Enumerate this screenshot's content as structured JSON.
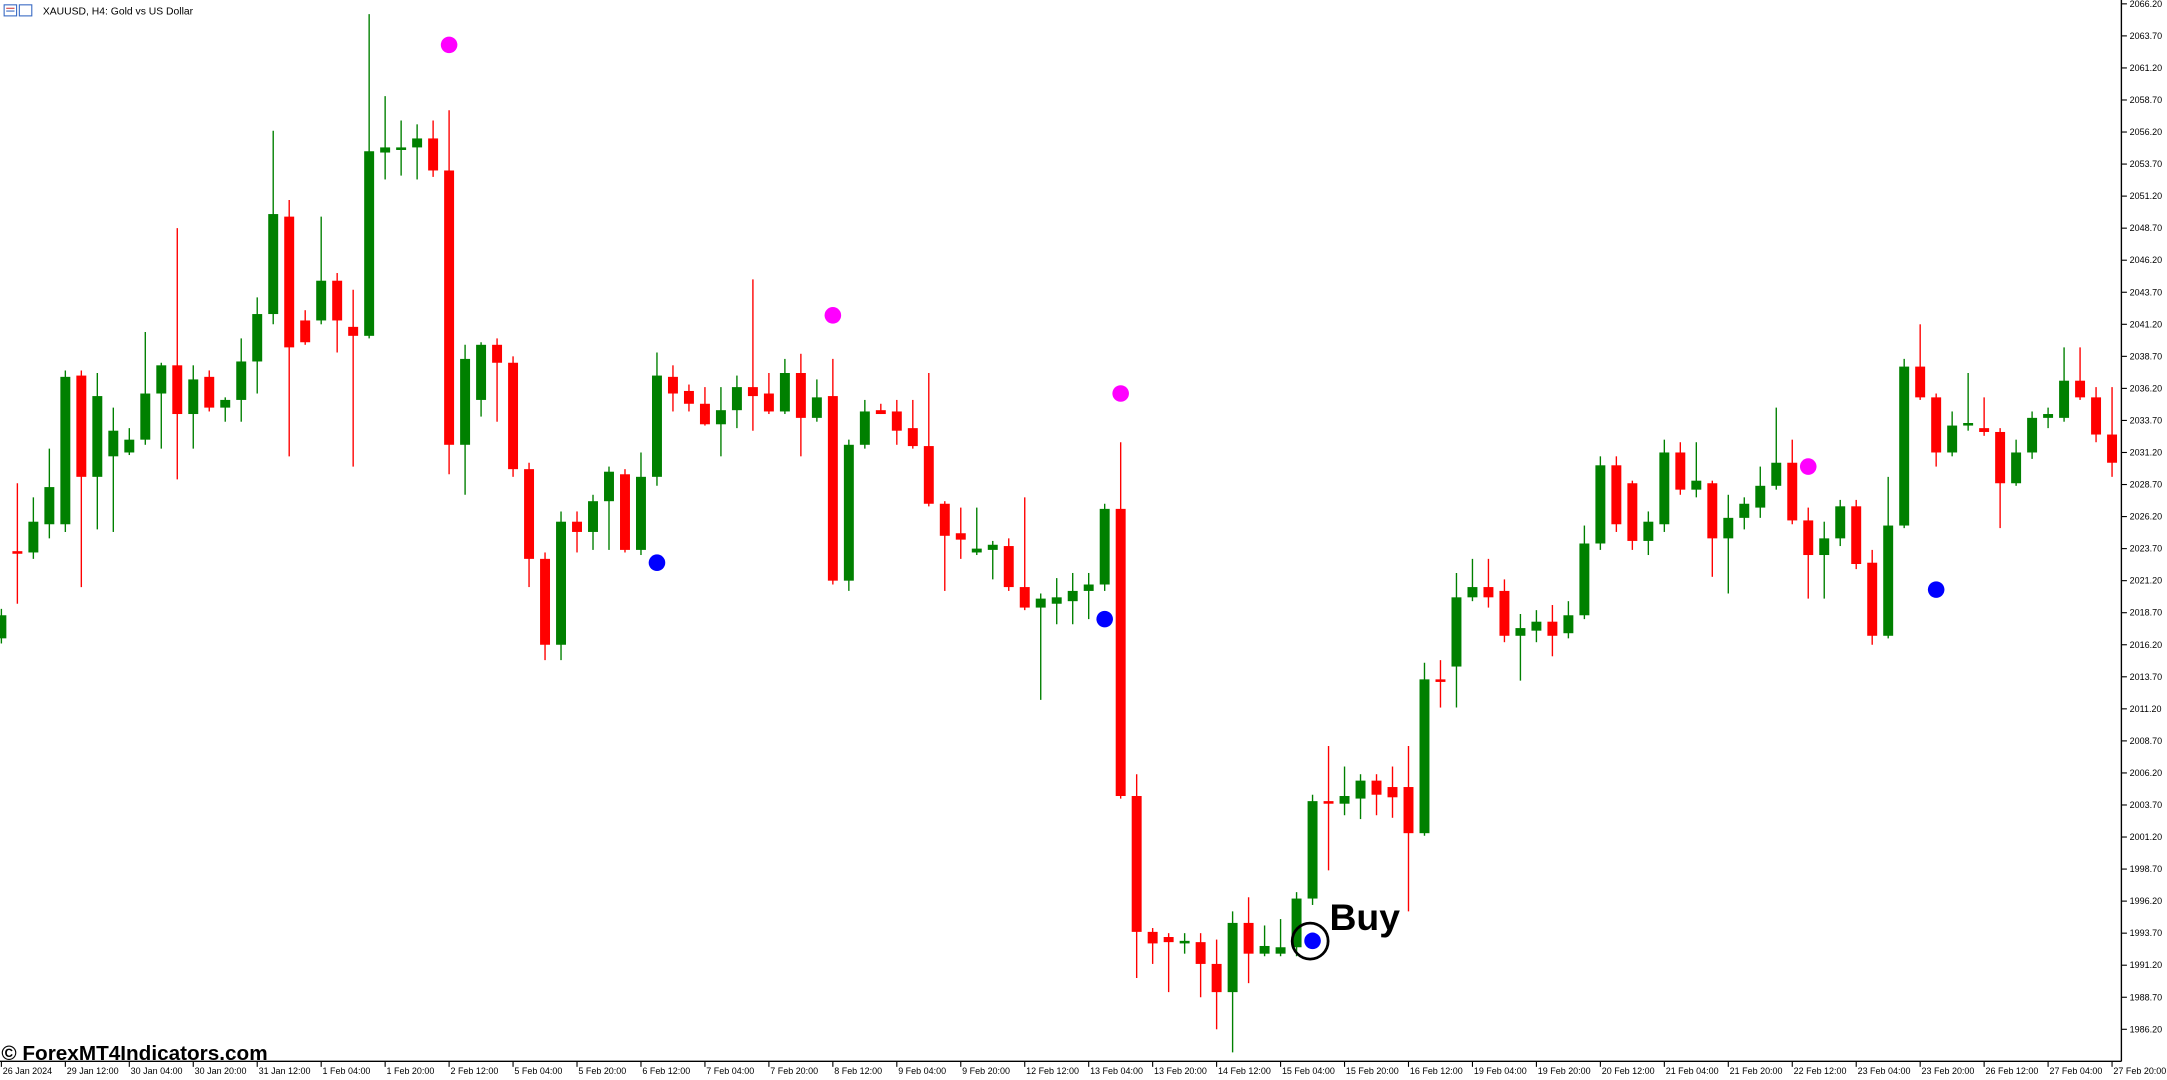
{
  "chart_data": {
    "type": "candlestick",
    "title": "XAUUSD, H4:  Gold vs US Dollar",
    "watermark": "© ForexMT4Indicators.com",
    "annotation": "Buy",
    "up_color": "#008000",
    "down_color": "#ff0000",
    "categories": [
      "26 Jan 2024",
      null,
      null,
      null,
      "29 Jan 12:00",
      null,
      null,
      null,
      "30 Jan 04:00",
      null,
      null,
      null,
      "30 Jan 20:00",
      null,
      null,
      null,
      "31 Jan 12:00",
      null,
      null,
      null,
      "1 Feb 04:00",
      null,
      null,
      null,
      "1 Feb 20:00",
      null,
      null,
      null,
      "2 Feb 12:00",
      null,
      null,
      null,
      "5 Feb 04:00",
      null,
      null,
      null,
      "5 Feb 20:00",
      null,
      null,
      null,
      "6 Feb 12:00",
      null,
      null,
      null,
      "7 Feb 04:00",
      null,
      null,
      null,
      "7 Feb 20:00",
      null,
      null,
      null,
      "8 Feb 12:00",
      null,
      null,
      null,
      "9 Feb 04:00",
      null,
      null,
      null,
      "9 Feb 20:00",
      null,
      null,
      null,
      "12 Feb 12:00",
      null,
      null,
      null,
      "13 Feb 04:00",
      null,
      null,
      null,
      "13 Feb 20:00",
      null,
      null,
      null,
      "14 Feb 12:00",
      null,
      null,
      null,
      "15 Feb 04:00",
      null,
      null,
      null,
      "15 Feb 20:00",
      null,
      null,
      null,
      "16 Feb 12:00",
      null,
      null,
      null,
      "19 Feb 04:00",
      null,
      null,
      null,
      "19 Feb 20:00",
      null,
      null,
      null,
      "20 Feb 12:00",
      null,
      null,
      null,
      "21 Feb 04:00",
      null,
      null,
      null,
      "21 Feb 20:00",
      null,
      null,
      null,
      "22 Feb 12:00",
      null,
      null,
      null,
      "23 Feb 04:00",
      null,
      null,
      null,
      "23 Feb 20:00",
      null,
      null,
      null,
      "26 Feb 12:00",
      null,
      null,
      null,
      "27 Feb 04:00",
      null,
      null,
      null,
      "27 Feb 20:00"
    ],
    "open": [
      2016.7,
      2023.5,
      2023.4,
      2025.6,
      2025.6,
      2037.2,
      2029.3,
      2030.9,
      2031.2,
      2032.2,
      2035.8,
      2038.0,
      2034.2,
      2037.1,
      2034.7,
      2035.3,
      2038.3,
      2042.0,
      2049.6,
      2041.5,
      2041.5,
      2044.6,
      2041.0,
      2040.3,
      2054.6,
      2054.8,
      2055.0,
      2055.7,
      2053.2,
      2031.8,
      2035.3,
      2039.6,
      2038.2,
      2029.9,
      2022.9,
      2016.2,
      2025.8,
      2025.0,
      2027.4,
      2029.5,
      2023.6,
      2029.3,
      2037.1,
      2036.0,
      2035.0,
      2033.4,
      2034.5,
      2036.3,
      2035.8,
      2034.4,
      2037.4,
      2033.9,
      2035.6,
      2021.2,
      2031.8,
      2034.5,
      2034.4,
      2033.1,
      2031.7,
      2027.2,
      2024.9,
      2023.4,
      2023.6,
      2023.9,
      2020.7,
      2019.1,
      2019.4,
      2019.6,
      2020.4,
      2020.9,
      2026.8,
      2004.4,
      1993.8,
      1993.4,
      1992.9,
      1993.0,
      1991.3,
      1989.1,
      1994.5,
      1992.1,
      1992.1,
      1992.6,
      1996.4,
      2004.0,
      2003.8,
      2004.2,
      2005.6,
      2005.1,
      2005.1,
      2001.5,
      2013.5,
      2014.5,
      2019.9,
      2020.7,
      2020.4,
      2016.9,
      2017.3,
      2018.0,
      2017.1,
      2018.5,
      2024.1,
      2030.2,
      2028.8,
      2024.3,
      2025.6,
      2031.2,
      2028.3,
      2028.8,
      2024.5,
      2026.1,
      2026.9,
      2028.6,
      2030.4,
      2025.9,
      2023.2,
      2024.5,
      2027.0,
      2022.6,
      2016.9,
      2025.5,
      2037.9,
      2035.5,
      2031.2,
      2033.3,
      2033.1,
      2032.8,
      2028.8,
      2031.2,
      2033.9,
      2033.9,
      2036.8,
      2035.5,
      2032.6
    ],
    "high": [
      2019.0,
      2028.8,
      2027.7,
      2031.5,
      2037.6,
      2037.6,
      2037.4,
      2034.7,
      2033.1,
      2040.6,
      2038.2,
      2048.7,
      2038.0,
      2037.6,
      2035.5,
      2040.1,
      2043.3,
      2056.3,
      2050.9,
      2042.3,
      2049.6,
      2045.2,
      2043.9,
      2065.4,
      2059.0,
      2057.1,
      2056.8,
      2057.1,
      2057.9,
      2039.6,
      2039.8,
      2040.1,
      2038.7,
      2030.4,
      2023.4,
      2026.6,
      2026.6,
      2027.9,
      2030.1,
      2029.9,
      2031.2,
      2039.0,
      2038.0,
      2036.5,
      2036.3,
      2036.3,
      2037.2,
      2044.7,
      2037.4,
      2038.5,
      2038.9,
      2036.9,
      2038.5,
      2032.2,
      2035.3,
      2035.0,
      2035.3,
      2035.3,
      2037.4,
      2027.4,
      2026.9,
      2026.9,
      2024.3,
      2024.5,
      2027.7,
      2020.2,
      2021.4,
      2021.8,
      2021.8,
      2027.2,
      2032.0,
      2006.1,
      1994.1,
      1993.7,
      1993.7,
      1993.7,
      1993.2,
      1995.4,
      1996.5,
      1994.3,
      1994.8,
      1996.9,
      2004.5,
      2008.3,
      2006.7,
      2006.1,
      2006.1,
      2006.7,
      2008.3,
      2014.8,
      2015.0,
      2021.8,
      2022.9,
      2022.9,
      2021.3,
      2018.6,
      2018.9,
      2019.3,
      2019.6,
      2025.5,
      2030.9,
      2030.9,
      2029.0,
      2026.6,
      2032.2,
      2032.0,
      2032.0,
      2029.0,
      2027.9,
      2027.7,
      2030.1,
      2034.7,
      2032.2,
      2026.9,
      2025.8,
      2027.5,
      2027.5,
      2023.6,
      2029.3,
      2038.5,
      2041.2,
      2035.8,
      2034.4,
      2037.4,
      2035.5,
      2033.1,
      2032.2,
      2034.4,
      2034.7,
      2039.4,
      2039.4,
      2036.3,
      2036.3
    ],
    "low": [
      2016.3,
      2019.4,
      2022.9,
      2024.5,
      2025.0,
      2020.7,
      2025.2,
      2025.0,
      2031.0,
      2031.8,
      2031.5,
      2029.1,
      2031.5,
      2034.4,
      2033.6,
      2033.6,
      2035.8,
      2041.2,
      2030.9,
      2039.6,
      2041.2,
      2039.0,
      2030.1,
      2040.1,
      2052.5,
      2052.8,
      2052.5,
      2052.7,
      2029.5,
      2027.9,
      2034.0,
      2033.6,
      2029.3,
      2020.7,
      2015.0,
      2015.0,
      2023.4,
      2023.6,
      2023.6,
      2023.4,
      2023.2,
      2028.6,
      2034.4,
      2034.4,
      2033.3,
      2030.9,
      2033.1,
      2032.9,
      2034.2,
      2034.2,
      2030.9,
      2033.6,
      2020.9,
      2020.4,
      2031.5,
      2034.2,
      2031.8,
      2031.5,
      2027.0,
      2020.4,
      2022.9,
      2023.2,
      2021.3,
      2020.4,
      2018.9,
      2011.9,
      2017.8,
      2017.8,
      2018.2,
      2020.4,
      2004.2,
      1990.2,
      1991.3,
      1989.1,
      1992.1,
      1988.7,
      1986.2,
      1984.4,
      1989.8,
      1991.9,
      1991.9,
      1991.9,
      1995.9,
      1998.6,
      2002.9,
      2002.6,
      2002.9,
      2002.7,
      1995.4,
      2001.3,
      2011.3,
      2011.3,
      2019.6,
      2019.1,
      2016.4,
      2013.4,
      2016.4,
      2015.3,
      2016.7,
      2018.2,
      2023.6,
      2025.0,
      2023.6,
      2023.2,
      2025.0,
      2027.9,
      2027.7,
      2021.5,
      2020.2,
      2025.2,
      2026.1,
      2028.3,
      2025.6,
      2019.8,
      2019.8,
      2023.9,
      2022.1,
      2016.2,
      2016.7,
      2025.3,
      2035.3,
      2030.1,
      2030.9,
      2032.9,
      2032.5,
      2025.3,
      2028.6,
      2030.7,
      2033.1,
      2033.6,
      2035.3,
      2032.0,
      2029.3
    ],
    "close": [
      2018.5,
      2023.3,
      2025.8,
      2028.5,
      2037.1,
      2029.3,
      2035.6,
      2032.9,
      2032.2,
      2035.8,
      2038.0,
      2034.2,
      2036.9,
      2034.7,
      2035.3,
      2038.3,
      2042.0,
      2049.8,
      2039.4,
      2039.8,
      2044.6,
      2041.5,
      2040.3,
      2054.7,
      2055.0,
      2055.0,
      2055.7,
      2053.2,
      2031.8,
      2038.5,
      2039.6,
      2038.2,
      2029.9,
      2022.9,
      2016.2,
      2025.8,
      2025.0,
      2027.4,
      2029.7,
      2023.6,
      2029.3,
      2037.2,
      2035.8,
      2035.0,
      2033.4,
      2034.5,
      2036.3,
      2035.6,
      2034.4,
      2037.4,
      2033.9,
      2035.5,
      2021.2,
      2031.8,
      2034.4,
      2034.2,
      2032.9,
      2031.7,
      2027.2,
      2024.7,
      2024.4,
      2023.7,
      2024.0,
      2020.7,
      2019.1,
      2019.8,
      2019.9,
      2020.4,
      2020.9,
      2026.8,
      2004.4,
      1993.8,
      1992.9,
      1993.0,
      1993.1,
      1991.3,
      1989.1,
      1994.5,
      1992.1,
      1992.7,
      1992.6,
      1996.4,
      2004.0,
      2003.8,
      2004.4,
      2005.6,
      2004.5,
      2004.3,
      2001.5,
      2013.5,
      2013.3,
      2019.9,
      2020.7,
      2019.9,
      2016.9,
      2017.5,
      2018.0,
      2016.9,
      2018.5,
      2024.1,
      2030.2,
      2025.6,
      2024.3,
      2025.8,
      2031.2,
      2028.3,
      2029.0,
      2024.5,
      2026.1,
      2027.2,
      2028.6,
      2030.4,
      2025.9,
      2023.2,
      2024.5,
      2027.0,
      2022.5,
      2016.9,
      2025.5,
      2037.9,
      2035.5,
      2031.2,
      2033.3,
      2033.5,
      2032.8,
      2028.8,
      2031.2,
      2033.9,
      2034.2,
      2036.8,
      2035.5,
      2032.6,
      2030.4
    ],
    "signals": [
      {
        "color": "#ff00ff",
        "values": [
          null,
          null,
          null,
          null,
          null,
          null,
          null,
          null,
          null,
          null,
          null,
          null,
          null,
          null,
          null,
          null,
          null,
          null,
          null,
          null,
          null,
          null,
          null,
          null,
          null,
          null,
          null,
          null,
          2063.0,
          null,
          null,
          null,
          null,
          null,
          null,
          null,
          null,
          null,
          null,
          null,
          null,
          null,
          null,
          null,
          null,
          null,
          null,
          null,
          null,
          null,
          null,
          null,
          2041.9,
          null,
          null,
          null,
          null,
          null,
          null,
          null,
          null,
          null,
          null,
          null,
          null,
          null,
          null,
          null,
          null,
          null,
          2035.8,
          null,
          null,
          null,
          null,
          null,
          null,
          null,
          null,
          null,
          null,
          null,
          null,
          null,
          null,
          null,
          null,
          null,
          null,
          null,
          null,
          null,
          null,
          null,
          null,
          null,
          null,
          null,
          null,
          null,
          null,
          null,
          null,
          null,
          null,
          null,
          null,
          null,
          null,
          null,
          null,
          null,
          null,
          2030.1,
          null,
          null,
          null,
          null,
          null,
          null,
          null,
          null,
          null,
          null,
          null,
          null,
          null,
          null,
          null,
          null,
          null,
          null,
          null
        ]
      },
      {
        "color": "#0000ff",
        "values": [
          null,
          null,
          null,
          null,
          null,
          null,
          null,
          null,
          null,
          null,
          null,
          null,
          null,
          null,
          null,
          null,
          null,
          null,
          null,
          null,
          null,
          null,
          null,
          null,
          null,
          null,
          null,
          null,
          null,
          null,
          null,
          null,
          null,
          null,
          null,
          null,
          null,
          null,
          null,
          null,
          null,
          2022.6,
          null,
          null,
          null,
          null,
          null,
          null,
          null,
          null,
          null,
          null,
          null,
          null,
          null,
          null,
          null,
          null,
          null,
          null,
          null,
          null,
          null,
          null,
          null,
          null,
          null,
          null,
          null,
          2018.2,
          null,
          null,
          null,
          null,
          null,
          null,
          null,
          null,
          null,
          null,
          null,
          null,
          1993.1,
          null,
          null,
          null,
          null,
          null,
          null,
          null,
          null,
          null,
          null,
          null,
          null,
          null,
          null,
          null,
          null,
          null,
          null,
          null,
          null,
          null,
          null,
          null,
          null,
          null,
          null,
          null,
          null,
          null,
          null,
          null,
          null,
          null,
          null,
          null,
          null,
          null,
          null,
          2020.5,
          null,
          null,
          null,
          null,
          null,
          null,
          null,
          null,
          null,
          null,
          null,
          null,
          null
        ]
      }
    ],
    "ylim": [
      1983.7,
      2066.5
    ],
    "yticks": [
      {
        "value": 2066.2,
        "label": "2066.20"
      },
      {
        "value": 2063.7,
        "label": "2063.70"
      },
      {
        "value": 2061.2,
        "label": "2061.20"
      },
      {
        "value": 2058.7,
        "label": "2058.70"
      },
      {
        "value": 2056.2,
        "label": "2056.20"
      },
      {
        "value": 2053.7,
        "label": "2053.70"
      },
      {
        "value": 2051.2,
        "label": "2051.20"
      },
      {
        "value": 2048.7,
        "label": "2048.70"
      },
      {
        "value": 2046.2,
        "label": "2046.20"
      },
      {
        "value": 2043.7,
        "label": "2043.70"
      },
      {
        "value": 2041.2,
        "label": "2041.20"
      },
      {
        "value": 2038.7,
        "label": "2038.70"
      },
      {
        "value": 2036.2,
        "label": "2036.20"
      },
      {
        "value": 2033.7,
        "label": "2033.70"
      },
      {
        "value": 2031.2,
        "label": "2031.20"
      },
      {
        "value": 2028.7,
        "label": "2028.70"
      },
      {
        "value": 2026.2,
        "label": "2026.20"
      },
      {
        "value": 2023.7,
        "label": "2023.70"
      },
      {
        "value": 2021.2,
        "label": "2021.20"
      },
      {
        "value": 2018.7,
        "label": "2018.70"
      },
      {
        "value": 2016.2,
        "label": "2016.20"
      },
      {
        "value": 2013.7,
        "label": "2013.70"
      },
      {
        "value": 2011.2,
        "label": "2011.20"
      },
      {
        "value": 2008.7,
        "label": "2008.70"
      },
      {
        "value": 2006.2,
        "label": "2006.20"
      },
      {
        "value": 2003.7,
        "label": "2003.70"
      },
      {
        "value": 2001.2,
        "label": "2001.20"
      },
      {
        "value": 1998.7,
        "label": "1998.70"
      },
      {
        "value": 1996.2,
        "label": "1996.20"
      },
      {
        "value": 1993.7,
        "label": "1993.70"
      },
      {
        "value": 1991.2,
        "label": "1991.20"
      },
      {
        "value": 1988.7,
        "label": "1988.70"
      },
      {
        "value": 1986.2,
        "label": "1986.20"
      }
    ]
  }
}
